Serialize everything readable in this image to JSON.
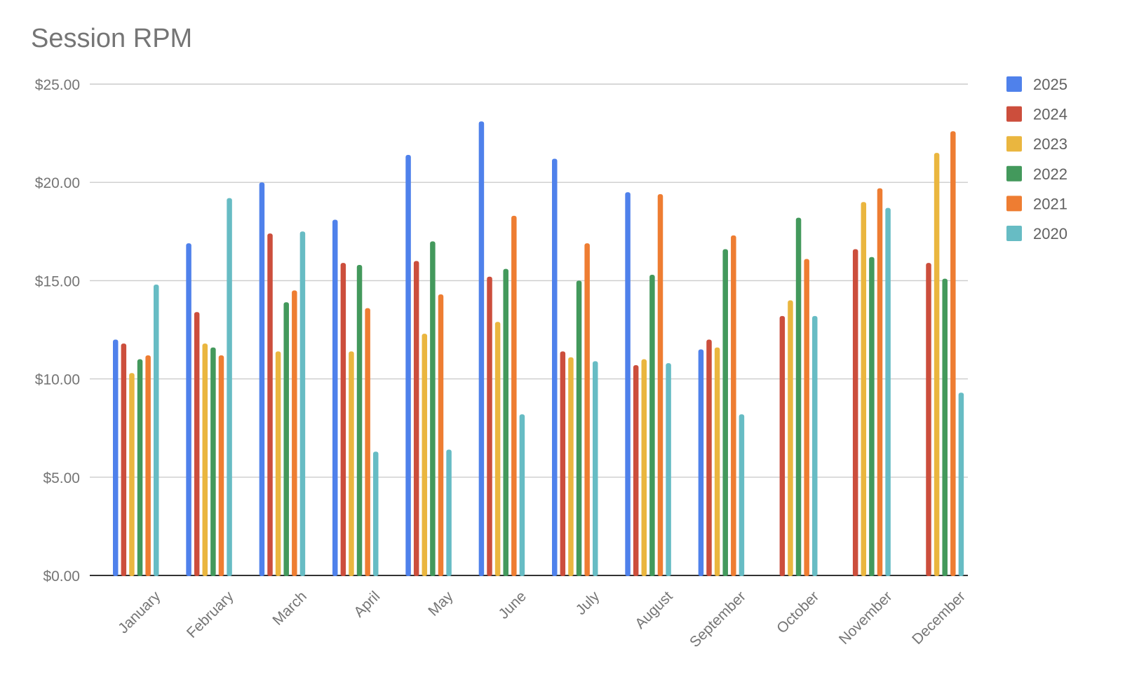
{
  "chart_data": {
    "type": "bar",
    "title": "Session RPM",
    "xlabel": "",
    "ylabel": "",
    "ylim": [
      0,
      25
    ],
    "yticks": [
      "$0.00",
      "$5.00",
      "$10.00",
      "$15.00",
      "$20.00",
      "$25.00"
    ],
    "ytick_values": [
      0,
      5,
      10,
      15,
      20,
      25
    ],
    "grid": true,
    "legend_position": "right",
    "categories": [
      "January",
      "February",
      "March",
      "April",
      "May",
      "June",
      "July",
      "August",
      "September",
      "October",
      "November",
      "December"
    ],
    "series": [
      {
        "name": "2025",
        "color": "#4f81eb",
        "values": [
          12.0,
          16.9,
          20.0,
          18.1,
          21.4,
          23.1,
          21.2,
          19.5,
          11.5,
          null,
          null,
          null
        ]
      },
      {
        "name": "2024",
        "color": "#cc4e3c",
        "values": [
          11.8,
          13.4,
          17.4,
          15.9,
          16.0,
          15.2,
          11.4,
          10.7,
          12.0,
          13.2,
          16.6,
          15.9
        ]
      },
      {
        "name": "2023",
        "color": "#eab63f",
        "values": [
          10.3,
          11.8,
          11.4,
          11.4,
          12.3,
          12.9,
          11.1,
          11.0,
          11.6,
          14.0,
          19.0,
          21.5
        ]
      },
      {
        "name": "2022",
        "color": "#43995c",
        "values": [
          11.0,
          11.6,
          13.9,
          15.8,
          17.0,
          15.6,
          15.0,
          15.3,
          16.6,
          18.2,
          16.2,
          15.1
        ]
      },
      {
        "name": "2021",
        "color": "#ee7d32",
        "values": [
          11.2,
          11.2,
          14.5,
          13.6,
          14.3,
          18.3,
          16.9,
          19.4,
          17.3,
          16.1,
          19.7,
          22.6
        ]
      },
      {
        "name": "2020",
        "color": "#67bcc4",
        "values": [
          14.8,
          19.2,
          17.5,
          6.3,
          6.4,
          8.2,
          10.9,
          10.8,
          8.2,
          13.2,
          18.7,
          9.3
        ]
      }
    ]
  }
}
